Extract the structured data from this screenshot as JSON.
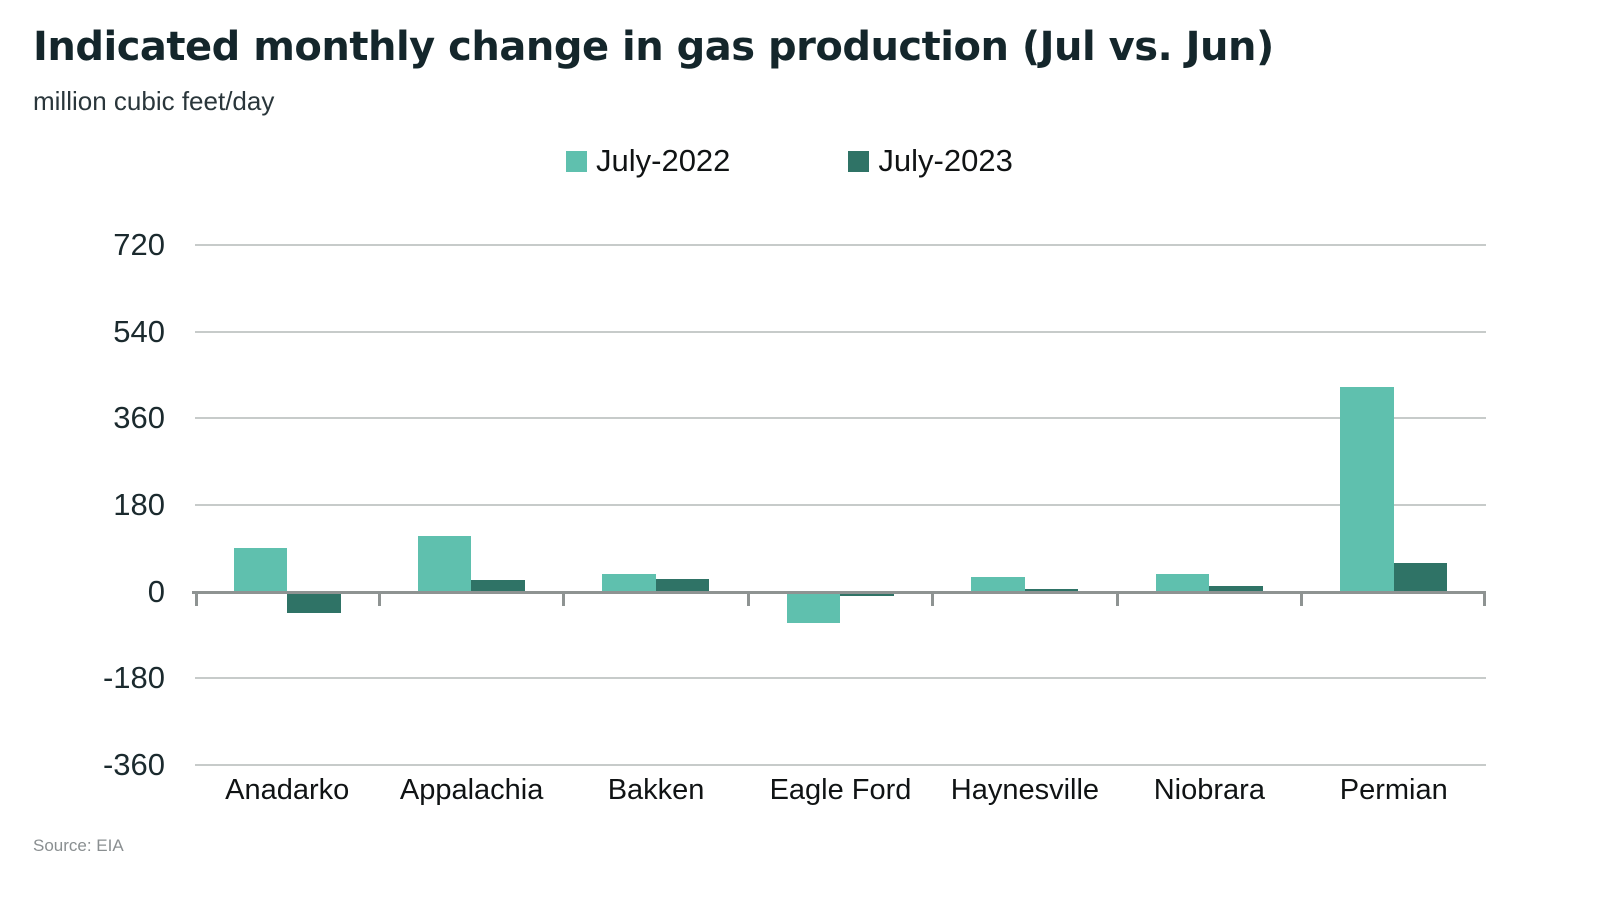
{
  "header": {
    "title": "Indicated monthly change in gas production (Jul vs. Jun)",
    "subtitle": "million cubic feet/day"
  },
  "footer": {
    "source": "Source: EIA"
  },
  "chart_data": {
    "type": "bar",
    "title": "Indicated monthly change in gas production (Jul vs. Jun)",
    "unit_label": "million cubic feet/day",
    "categories": [
      "Anadarko",
      "Appalachia",
      "Bakken",
      "Eagle Ford",
      "Haynesville",
      "Niobrara",
      "Permian"
    ],
    "series": [
      {
        "name": "July-2022",
        "color": "#5fc0ae",
        "values": [
          90,
          115,
          36,
          -65,
          30,
          36,
          425
        ]
      },
      {
        "name": "July-2023",
        "color": "#2f7366",
        "values": [
          -45,
          25,
          26,
          -8,
          5,
          12,
          60
        ]
      }
    ],
    "ylim": [
      -360,
      720
    ],
    "yticks": [
      720,
      540,
      360,
      180,
      0,
      -180,
      -360
    ],
    "grid": true,
    "legend_position": "top-center",
    "colors": {
      "title_text": "#14262b",
      "axis_line": "#8e9392",
      "gridline": "#c7cbca",
      "tick_label": "#1b2a2e",
      "source_text": "#8a8f91"
    }
  }
}
